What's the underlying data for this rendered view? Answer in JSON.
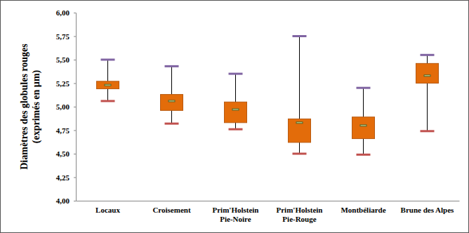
{
  "chart_data": {
    "type": "box",
    "y_label": "Diamètres des globules rouges (exprimés en µm)",
    "categories": [
      "Locaux",
      "Croisement",
      "Prim'Holstein Pie-Noire",
      "Prim'Holstein Pie-Rouge",
      "Montbéliarde",
      "Brune des Alpes"
    ],
    "min": [
      5.06,
      4.82,
      4.76,
      4.5,
      4.49,
      4.74
    ],
    "q1": [
      5.19,
      4.96,
      4.83,
      4.62,
      4.66,
      5.25
    ],
    "median": [
      5.23,
      5.06,
      4.97,
      4.83,
      4.8,
      5.33
    ],
    "q3": [
      5.27,
      5.13,
      5.05,
      4.87,
      4.89,
      5.46
    ],
    "max": [
      5.5,
      5.43,
      5.35,
      5.75,
      5.2,
      5.55
    ],
    "color": "#e36c0a",
    "ylim": [
      4.0,
      6.0
    ],
    "yticks": [
      {
        "value": 4.0,
        "label": "4,00"
      },
      {
        "value": 4.25,
        "label": "4,25"
      },
      {
        "value": 4.5,
        "label": "4,50"
      },
      {
        "value": 4.75,
        "label": "4,75"
      },
      {
        "value": 5.0,
        "label": "5,00"
      },
      {
        "value": 5.25,
        "label": "5,25"
      },
      {
        "value": 5.5,
        "label": "5,50"
      },
      {
        "value": 5.75,
        "label": "5,75"
      },
      {
        "value": 6.0,
        "label": "6,00"
      }
    ],
    "grid": false
  }
}
